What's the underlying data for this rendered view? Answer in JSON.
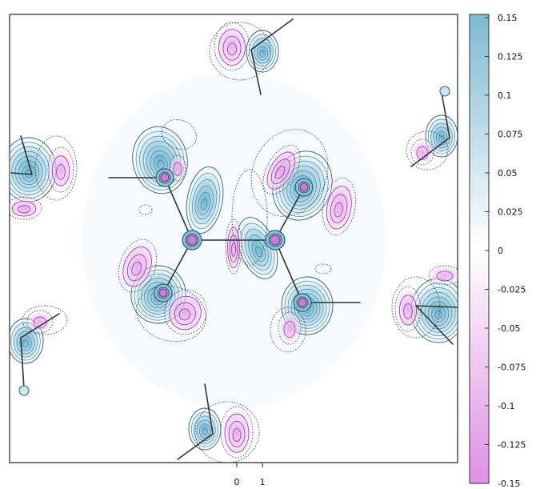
{
  "chart_data": {
    "type": "heatmap",
    "title": "",
    "xlabel": "",
    "ylabel": "",
    "x_ticks": [
      "0",
      "1"
    ],
    "colorbar": {
      "min": -0.15,
      "max": 0.15,
      "ticks": [
        "0.15",
        "0.125",
        "0.1",
        "0.075",
        "0.05",
        "0.025",
        "0",
        "-0.025",
        "-0.05",
        "-0.075",
        "-0.1",
        "-0.125",
        "-0.15"
      ],
      "color_high": "#7fb9d3",
      "color_zero": "#ffffff",
      "color_low": "#e08fe6"
    },
    "contour_style": {
      "positive": "solid",
      "negative": "dotted"
    }
  }
}
